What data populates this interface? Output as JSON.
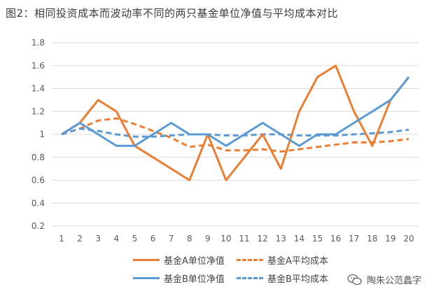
{
  "title": "图2：相同投资成本而波动率不同的两只基金单位净值与平均成本对比",
  "watermark": "陶朱公范蠡字",
  "chart_data": {
    "type": "line",
    "x": [
      1,
      2,
      3,
      4,
      5,
      6,
      7,
      8,
      9,
      10,
      11,
      12,
      13,
      14,
      15,
      16,
      17,
      18,
      19,
      20
    ],
    "ylim": [
      0.2,
      1.8
    ],
    "yticks": [
      "0.2",
      "0.4",
      "0.6",
      "0.8",
      "1",
      "1.2",
      "1.4",
      "1.6",
      "1.8"
    ],
    "xticks": [
      "1",
      "2",
      "3",
      "4",
      "5",
      "6",
      "7",
      "8",
      "9",
      "10",
      "11",
      "12",
      "13",
      "14",
      "15",
      "16",
      "17",
      "18",
      "19",
      "20"
    ],
    "grid": "horizontal",
    "legend_position": "bottom",
    "series": [
      {
        "name": "基金A单位净值",
        "color": "#ed7d31",
        "style": "solid",
        "values": [
          1.0,
          1.1,
          1.3,
          1.2,
          0.9,
          0.8,
          0.7,
          0.6,
          1.0,
          0.6,
          0.8,
          1.0,
          0.7,
          1.2,
          1.5,
          1.6,
          1.2,
          0.9,
          1.3,
          1.5
        ]
      },
      {
        "name": "基金A平均成本",
        "color": "#ed7d31",
        "style": "dashed",
        "values": [
          1.0,
          1.05,
          1.12,
          1.14,
          1.09,
          1.03,
          0.97,
          0.89,
          0.91,
          0.86,
          0.86,
          0.87,
          0.85,
          0.87,
          0.89,
          0.91,
          0.93,
          0.93,
          0.94,
          0.96
        ]
      },
      {
        "name": "基金B单位净值",
        "color": "#5b9bd5",
        "style": "solid",
        "values": [
          1.0,
          1.1,
          1.0,
          0.9,
          0.9,
          1.0,
          1.1,
          1.0,
          1.0,
          0.9,
          1.0,
          1.1,
          1.0,
          0.9,
          1.0,
          1.0,
          1.1,
          1.2,
          1.3,
          1.5
        ]
      },
      {
        "name": "基金B平均成本",
        "color": "#5b9bd5",
        "style": "dashed",
        "values": [
          1.0,
          1.05,
          1.03,
          1.0,
          0.98,
          0.98,
          0.99,
          1.0,
          1.0,
          0.99,
          0.99,
          1.0,
          1.0,
          0.99,
          0.99,
          0.99,
          1.0,
          1.01,
          1.02,
          1.04
        ]
      }
    ]
  }
}
